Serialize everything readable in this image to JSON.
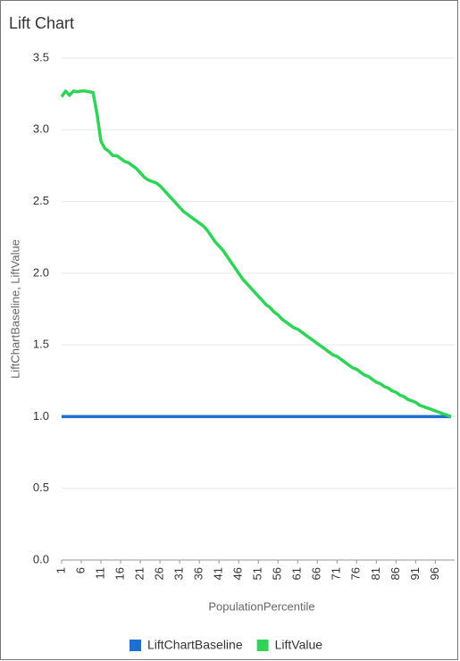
{
  "chart_data": {
    "type": "line",
    "title": "Lift Chart",
    "x_label": "PopulationPercentile",
    "y_label": "LiftChartBaseline, LiftValue",
    "x": [
      1,
      2,
      3,
      4,
      5,
      6,
      7,
      8,
      9,
      10,
      11,
      12,
      13,
      14,
      15,
      16,
      17,
      18,
      19,
      20,
      21,
      22,
      23,
      24,
      25,
      26,
      27,
      28,
      29,
      30,
      31,
      32,
      33,
      34,
      35,
      36,
      37,
      38,
      39,
      40,
      41,
      42,
      43,
      44,
      45,
      46,
      47,
      48,
      49,
      50,
      51,
      52,
      53,
      54,
      55,
      56,
      57,
      58,
      59,
      60,
      61,
      62,
      63,
      64,
      65,
      66,
      67,
      68,
      69,
      70,
      71,
      72,
      73,
      74,
      75,
      76,
      77,
      78,
      79,
      80,
      81,
      82,
      83,
      84,
      85,
      86,
      87,
      88,
      89,
      90,
      91,
      92,
      93,
      94,
      95,
      96,
      97,
      98,
      99,
      100
    ],
    "series": [
      {
        "name": "LiftChartBaseline",
        "color": "#1f6fd1",
        "values": [
          1,
          1,
          1,
          1,
          1,
          1,
          1,
          1,
          1,
          1,
          1,
          1,
          1,
          1,
          1,
          1,
          1,
          1,
          1,
          1,
          1,
          1,
          1,
          1,
          1,
          1,
          1,
          1,
          1,
          1,
          1,
          1,
          1,
          1,
          1,
          1,
          1,
          1,
          1,
          1,
          1,
          1,
          1,
          1,
          1,
          1,
          1,
          1,
          1,
          1,
          1,
          1,
          1,
          1,
          1,
          1,
          1,
          1,
          1,
          1,
          1,
          1,
          1,
          1,
          1,
          1,
          1,
          1,
          1,
          1,
          1,
          1,
          1,
          1,
          1,
          1,
          1,
          1,
          1,
          1,
          1,
          1,
          1,
          1,
          1,
          1,
          1,
          1,
          1,
          1,
          1,
          1,
          1,
          1,
          1,
          1,
          1,
          1,
          1,
          1
        ]
      },
      {
        "name": "LiftValue",
        "color": "#2fd357",
        "values": [
          3.23,
          3.27,
          3.24,
          3.27,
          3.265,
          3.27,
          3.27,
          3.265,
          3.26,
          3.11,
          2.92,
          2.87,
          2.85,
          2.82,
          2.82,
          2.8,
          2.78,
          2.77,
          2.75,
          2.73,
          2.7,
          2.67,
          2.65,
          2.64,
          2.63,
          2.61,
          2.58,
          2.55,
          2.52,
          2.49,
          2.46,
          2.43,
          2.41,
          2.39,
          2.37,
          2.35,
          2.33,
          2.3,
          2.26,
          2.22,
          2.19,
          2.16,
          2.12,
          2.08,
          2.04,
          2.0,
          1.96,
          1.93,
          1.9,
          1.87,
          1.84,
          1.81,
          1.78,
          1.76,
          1.73,
          1.71,
          1.68,
          1.66,
          1.64,
          1.62,
          1.61,
          1.59,
          1.57,
          1.55,
          1.53,
          1.51,
          1.49,
          1.47,
          1.45,
          1.43,
          1.42,
          1.4,
          1.38,
          1.36,
          1.34,
          1.33,
          1.31,
          1.29,
          1.28,
          1.26,
          1.24,
          1.23,
          1.21,
          1.2,
          1.18,
          1.17,
          1.15,
          1.14,
          1.12,
          1.11,
          1.1,
          1.08,
          1.07,
          1.06,
          1.05,
          1.04,
          1.03,
          1.02,
          1.01,
          1.0
        ]
      }
    ],
    "xlim": [
      1,
      100
    ],
    "xticks": [
      1,
      6,
      11,
      16,
      21,
      26,
      31,
      36,
      41,
      46,
      51,
      56,
      61,
      66,
      71,
      76,
      81,
      86,
      91,
      96
    ],
    "ylim": [
      0,
      3.5
    ],
    "yticks": [
      {
        "value": 0,
        "label": "0.0"
      },
      0.5,
      {
        "value": 1,
        "label": "1.0"
      },
      1.5,
      {
        "value": 2,
        "label": "2.0"
      },
      2.5,
      {
        "value": 3,
        "label": "3.0"
      },
      3.5
    ],
    "grid": true,
    "legend": "bottom"
  }
}
